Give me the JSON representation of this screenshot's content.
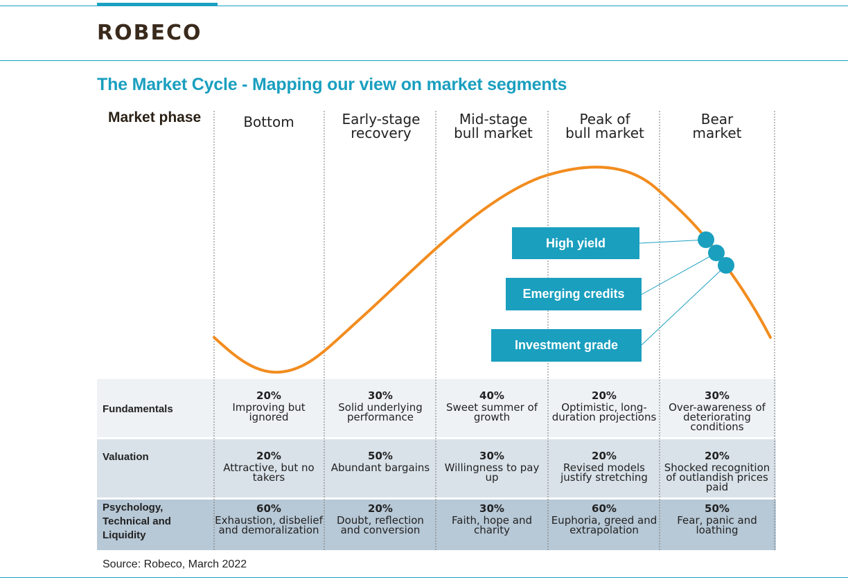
{
  "header": {
    "logo": "ROBECO"
  },
  "title": "The Market Cycle - Mapping our view on market segments",
  "phase_label": "Market phase",
  "phases": [
    {
      "line1": "Bottom",
      "line2": ""
    },
    {
      "line1": "Early-stage",
      "line2": "recovery"
    },
    {
      "line1": "Mid-stage",
      "line2": "bull market"
    },
    {
      "line1": "Peak of",
      "line2": "bull market"
    },
    {
      "line1": "Bear",
      "line2": "market"
    }
  ],
  "segments": {
    "high_yield": "High yield",
    "emerging_credits": "Emerging credits",
    "investment_grade": "Investment grade"
  },
  "rows": [
    {
      "label": "Fundamentals",
      "cells": [
        {
          "pct": "20%",
          "text": "Improving but ignored"
        },
        {
          "pct": "30%",
          "text": "Solid underlying performance"
        },
        {
          "pct": "40%",
          "text": "Sweet summer of growth"
        },
        {
          "pct": "20%",
          "text": "Optimistic, long-duration projections"
        },
        {
          "pct": "30%",
          "text": "Over-awareness of deteriorating conditions"
        }
      ]
    },
    {
      "label": "Valuation",
      "cells": [
        {
          "pct": "20%",
          "text": "Attractive, but no takers"
        },
        {
          "pct": "50%",
          "text": "Abundant bargains"
        },
        {
          "pct": "30%",
          "text": "Willingness to pay up"
        },
        {
          "pct": "20%",
          "text": "Revised models justify stretching"
        },
        {
          "pct": "20%",
          "text": "Shocked recognition of outlandish prices paid"
        }
      ]
    },
    {
      "label": "Psychology, Technical and Liquidity",
      "cells": [
        {
          "pct": "60%",
          "text": "Exhaustion, disbelief and demoralization"
        },
        {
          "pct": "20%",
          "text": "Doubt, reflection and conversion"
        },
        {
          "pct": "30%",
          "text": "Faith, hope and charity"
        },
        {
          "pct": "60%",
          "text": "Euphoria, greed and extrapolation"
        },
        {
          "pct": "50%",
          "text": "Fear, panic and loathing"
        }
      ]
    }
  ],
  "source": "Source: Robeco, March 2022",
  "colors": {
    "accent": "#1a9fbf",
    "curve": "#f28c1e",
    "row1": "#eef2f5",
    "row2": "#d9e2e9",
    "row3": "#b7c8d6"
  }
}
